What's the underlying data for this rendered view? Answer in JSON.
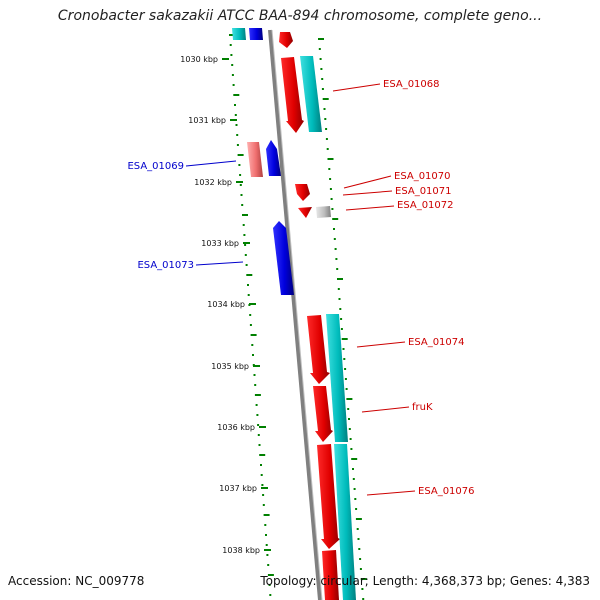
{
  "header": {
    "title": "Cronobacter sakazakii ATCC BAA-894 chromosome, complete geno..."
  },
  "footer": {
    "accession": "Accession: NC_009778",
    "topology": "Topology: circular; Length: 4,368,373 bp; Genes: 4,383"
  },
  "ticks": [
    "1030 kbp",
    "1031 kbp",
    "1032 kbp",
    "1033 kbp",
    "1034 kbp",
    "1035 kbp",
    "1036 kbp",
    "1037 kbp",
    "1038 kbp"
  ],
  "genes": [
    {
      "label": "ESA_01068",
      "side": "right"
    },
    {
      "label": "ESA_01069",
      "side": "left"
    },
    {
      "label": "ESA_01070",
      "side": "right"
    },
    {
      "label": "ESA_01071",
      "side": "right"
    },
    {
      "label": "ESA_01072",
      "side": "right"
    },
    {
      "label": "ESA_01073",
      "side": "left"
    },
    {
      "label": "ESA_01074",
      "side": "right"
    },
    {
      "label": "fruK",
      "side": "right"
    },
    {
      "label": "ESA_01076",
      "side": "right"
    }
  ],
  "colors": {
    "cds": "#ff0000",
    "cds_pseudo": "#f08080",
    "reverse_cds": "#0000ff",
    "rna": "#00cccc",
    "other": "#c0c0c0",
    "backbone": "#808080",
    "ticks": "#008000",
    "right_label": "#cc0000",
    "left_label": "#0000cc"
  }
}
